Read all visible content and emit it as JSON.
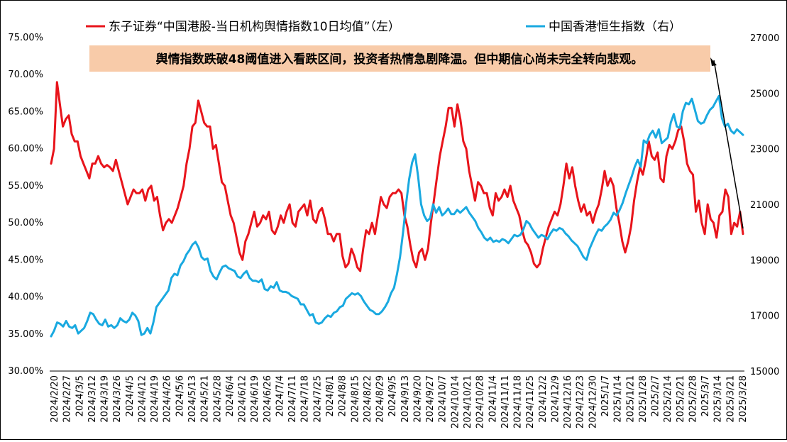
{
  "chart_data": {
    "type": "line",
    "legend": {
      "placement": "top",
      "items": [
        {
          "label": "东子证券“中国港股-当日机构舆情指数10日均值”（左）",
          "color": "#e8141b"
        },
        {
          "label": "中国香港恒生指数（右）",
          "color": "#19a9e0"
        }
      ]
    },
    "annotation": {
      "text": "舆情指数跌破48阈值进入看跌区间，投资者热情急剧降温。但中期信心尚未完全转向悲观。",
      "background": "#f8cba9"
    },
    "y_left": {
      "range": [
        30,
        75
      ],
      "tick_labels": [
        "30.00%",
        "35.00%",
        "40.00%",
        "45.00%",
        "50.00%",
        "55.00%",
        "60.00%",
        "65.00%",
        "70.00%",
        "75.00%"
      ]
    },
    "y_right": {
      "range": [
        15000,
        27000
      ],
      "tick_labels": [
        "15000",
        "17000",
        "19000",
        "21000",
        "23000",
        "25000",
        "27000"
      ]
    },
    "x_tick_labels": [
      "2024/2/20",
      "2024/2/27",
      "2024/3/5",
      "2024/3/12",
      "2024/3/19",
      "2024/3/26",
      "2024/4/5",
      "2024/4/12",
      "2024/4/19",
      "2024/4/26",
      "2024/5/6",
      "2024/5/13",
      "2024/5/21",
      "2024/5/28",
      "2024/6/4",
      "2024/6/12",
      "2024/6/19",
      "2024/6/26",
      "2024/7/4",
      "2024/7/11",
      "2024/7/18",
      "2024/7/25",
      "2024/8/1",
      "2024/8/8",
      "2024/8/15",
      "2024/8/22",
      "2024/8/29",
      "2024/9/5",
      "2024/9/13",
      "2024/9/20",
      "2024/9/27",
      "2024/10/7",
      "2024/10/14",
      "2024/10/21",
      "2024/10/28",
      "2024/11/4",
      "2024/11/11",
      "2024/11/18",
      "2024/11/25",
      "2024/12/2",
      "2024/12/9",
      "2024/12/16",
      "2024/12/23",
      "2024/12/30",
      "2025/1/7",
      "2025/1/14",
      "2025/1/21",
      "2025/1/28",
      "2025/2/7",
      "2025/2/14",
      "2025/2/21",
      "2025/2/28",
      "2025/3/7",
      "2025/3/14",
      "2025/3/21",
      "2025/3/28"
    ],
    "series": [
      {
        "name": "东子证券“中国港股-当日机构舆情指数10日均值”（左）",
        "axis": "left",
        "color": "#e8141b",
        "values": [
          58,
          60,
          69,
          66,
          63,
          64,
          64.5,
          62,
          61,
          61,
          59,
          58,
          57,
          56,
          58,
          58,
          59,
          58,
          57.5,
          57.8,
          57.5,
          57,
          58.5,
          57,
          55.5,
          54,
          52.5,
          53.5,
          54.5,
          54,
          54,
          54.5,
          53,
          54.5,
          55,
          53,
          53.5,
          51,
          49,
          50,
          50.5,
          50,
          51,
          52,
          53.5,
          55,
          58,
          60,
          63,
          63.5,
          66.5,
          65,
          63.5,
          63,
          63,
          60,
          60.5,
          58,
          55.5,
          55,
          53,
          51,
          50,
          48,
          46,
          45,
          47.5,
          48.5,
          50,
          51.5,
          49.5,
          50,
          51,
          50.5,
          51.5,
          49,
          48.5,
          49.5,
          51,
          50,
          51.5,
          52.5,
          50,
          49.5,
          51.5,
          52,
          52.5,
          51,
          53,
          50.5,
          50,
          51.5,
          52,
          50.5,
          48.5,
          48.5,
          47.5,
          48.5,
          48.5,
          45.5,
          44,
          44.5,
          46.5,
          45.5,
          44,
          43.5,
          46.5,
          49,
          48.5,
          50,
          48.5,
          51,
          53.5,
          52.5,
          52,
          53.5,
          54,
          54,
          54.5,
          54,
          51,
          49.5,
          47,
          45,
          44,
          46,
          46.5,
          45,
          46.5,
          50,
          53,
          56,
          59,
          61,
          63,
          65.5,
          65.5,
          63,
          66,
          64,
          61,
          60,
          57,
          55,
          53,
          55.5,
          55,
          54,
          54,
          52,
          51,
          54,
          53,
          53.5,
          54.5,
          53.5,
          55,
          53,
          52,
          51,
          49,
          47.5,
          47,
          46,
          44.5,
          44,
          44.5,
          46.5,
          48,
          49.5,
          50.5,
          51.5,
          51,
          52.5,
          55,
          58,
          56,
          57.5,
          55,
          53,
          51.5,
          52.5,
          51,
          51.5,
          50,
          51.5,
          52.5,
          54.5,
          57,
          55,
          56,
          55,
          52,
          50,
          47.5,
          46,
          47.5,
          49.5,
          53,
          55.5,
          57.5,
          56.5,
          58.5,
          61,
          59,
          58.5,
          59.5,
          56,
          55.5,
          59,
          60.5,
          60,
          61,
          62.5,
          63,
          61,
          58,
          57,
          56.5,
          51.5,
          53,
          50,
          48.5,
          52.5,
          50.5,
          50,
          48,
          51,
          51.5,
          54.5,
          53.5,
          48.5,
          50,
          49.5,
          51.5,
          48.5
        ]
      },
      {
        "name": "中国香港恒生指数（右）",
        "axis": "right",
        "color": "#19a9e0",
        "values": [
          16250,
          16450,
          16750,
          16700,
          16600,
          16800,
          16600,
          16550,
          16650,
          16350,
          16450,
          16550,
          16800,
          17100,
          17050,
          16850,
          16700,
          16650,
          16850,
          16600,
          16650,
          16550,
          16650,
          16900,
          16800,
          16750,
          16850,
          17100,
          17000,
          16800,
          16300,
          16350,
          16550,
          16350,
          16750,
          17300,
          17450,
          17600,
          17750,
          17900,
          18350,
          18500,
          18450,
          18800,
          18950,
          19200,
          19350,
          19550,
          19650,
          19450,
          19100,
          19000,
          19050,
          18600,
          18400,
          18300,
          18550,
          18750,
          18800,
          18700,
          18650,
          18600,
          18400,
          18350,
          18500,
          18600,
          18350,
          18250,
          18250,
          18200,
          18300,
          17950,
          17900,
          18050,
          18000,
          18200,
          17900,
          17850,
          17850,
          17800,
          17700,
          17650,
          17600,
          17400,
          17400,
          17200,
          17000,
          17050,
          16750,
          16700,
          16750,
          16900,
          17000,
          16950,
          17100,
          17150,
          17300,
          17350,
          17600,
          17700,
          17800,
          17750,
          17800,
          17700,
          17500,
          17350,
          17200,
          17150,
          17050,
          17050,
          17150,
          17300,
          17500,
          17800,
          18000,
          18500,
          19100,
          20000,
          21000,
          21900,
          22500,
          22800,
          22000,
          21000,
          20600,
          20400,
          20500,
          21000,
          20700,
          20900,
          20600,
          20700,
          20850,
          20650,
          20650,
          20800,
          20700,
          20800,
          20900,
          20700,
          20550,
          20400,
          20150,
          20000,
          19800,
          19700,
          19800,
          19650,
          19700,
          19650,
          19750,
          19700,
          19600,
          19750,
          19900,
          19850,
          19900,
          20100,
          20400,
          20300,
          20100,
          19950,
          19800,
          19900,
          19850,
          19750,
          19950,
          20100,
          20050,
          20150,
          20100,
          19950,
          19850,
          19700,
          19600,
          19500,
          19300,
          19100,
          19000,
          19400,
          19650,
          19900,
          20100,
          20050,
          20200,
          20300,
          20450,
          20700,
          20600,
          20800,
          21050,
          21400,
          21700,
          22000,
          22350,
          22600,
          22350,
          23300,
          23200,
          23500,
          23650,
          23400,
          23700,
          23200,
          23300,
          23400,
          23950,
          24250,
          23800,
          23750,
          24350,
          24650,
          24600,
          24800,
          24400,
          24000,
          23900,
          23950,
          24200,
          24400,
          24500,
          24700,
          24900,
          24100,
          23800,
          23900,
          23650,
          23550,
          23700,
          23600,
          23500
        ]
      }
    ]
  }
}
